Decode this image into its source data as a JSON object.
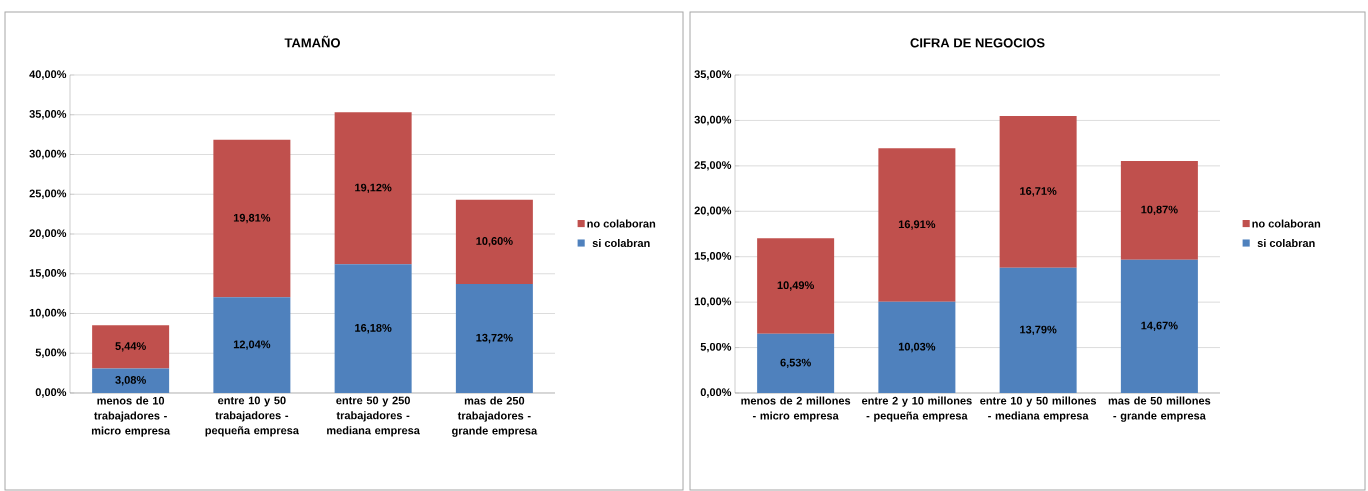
{
  "chart_data": [
    {
      "type": "bar",
      "stacked": true,
      "title": "TAMAÑO",
      "categories": [
        "menos de 10 trabajadores - micro empresa",
        "entre 10 y 50 trabajadores - pequeña empresa",
        "entre 50 y 250 trabajadores - mediana empresa",
        "mas de 250 trabajadores - grande empresa"
      ],
      "series": [
        {
          "name": "si colabran",
          "color": "#4f81bd",
          "values": [
            3.08,
            12.04,
            16.18,
            13.72
          ],
          "value_labels": [
            "3,08%",
            "12,04%",
            "16,18%",
            "13,72%"
          ]
        },
        {
          "name": "no colaboran",
          "color": "#c0504d",
          "values": [
            5.44,
            19.81,
            19.12,
            10.6
          ],
          "value_labels": [
            "5,44%",
            "19,81%",
            "19,12%",
            "10,60%"
          ]
        }
      ],
      "ylim": [
        0,
        40
      ],
      "yticks": [
        {
          "value": 0,
          "label": "0,00%"
        },
        {
          "value": 5,
          "label": "5,00%"
        },
        {
          "value": 10,
          "label": "10,00%"
        },
        {
          "value": 15,
          "label": "15,00%"
        },
        {
          "value": 20,
          "label": "20,00%"
        },
        {
          "value": 25,
          "label": "25,00%"
        },
        {
          "value": 30,
          "label": "30,00%"
        },
        {
          "value": 35,
          "label": "35,00%"
        },
        {
          "value": 40,
          "label": "40,00%"
        }
      ],
      "grid": "y",
      "legend": "right"
    },
    {
      "type": "bar",
      "stacked": true,
      "title": "CIFRA DE NEGOCIOS",
      "categories": [
        "menos de 2 millones - micro empresa",
        "entre 2 y 10 millones - pequeña empresa",
        "entre 10 y 50 millones - mediana empresa",
        "mas de 50 millones - grande empresa"
      ],
      "series": [
        {
          "name": "si colabran",
          "color": "#4f81bd",
          "values": [
            6.53,
            10.03,
            13.79,
            14.67
          ],
          "value_labels": [
            "6,53%",
            "10,03%",
            "13,79%",
            "14,67%"
          ]
        },
        {
          "name": "no colaboran",
          "color": "#c0504d",
          "values": [
            10.49,
            16.91,
            16.71,
            10.87
          ],
          "value_labels": [
            "10,49%",
            "16,91%",
            "16,71%",
            "10,87%"
          ]
        }
      ],
      "ylim": [
        0,
        35
      ],
      "yticks": [
        {
          "value": 0,
          "label": "0,00%"
        },
        {
          "value": 5,
          "label": "5,00%"
        },
        {
          "value": 10,
          "label": "10,00%"
        },
        {
          "value": 15,
          "label": "15,00%"
        },
        {
          "value": 20,
          "label": "20,00%"
        },
        {
          "value": 25,
          "label": "25,00%"
        },
        {
          "value": 30,
          "label": "30,00%"
        },
        {
          "value": 35,
          "label": "35,00%"
        }
      ],
      "grid": "y",
      "legend": "right"
    }
  ]
}
